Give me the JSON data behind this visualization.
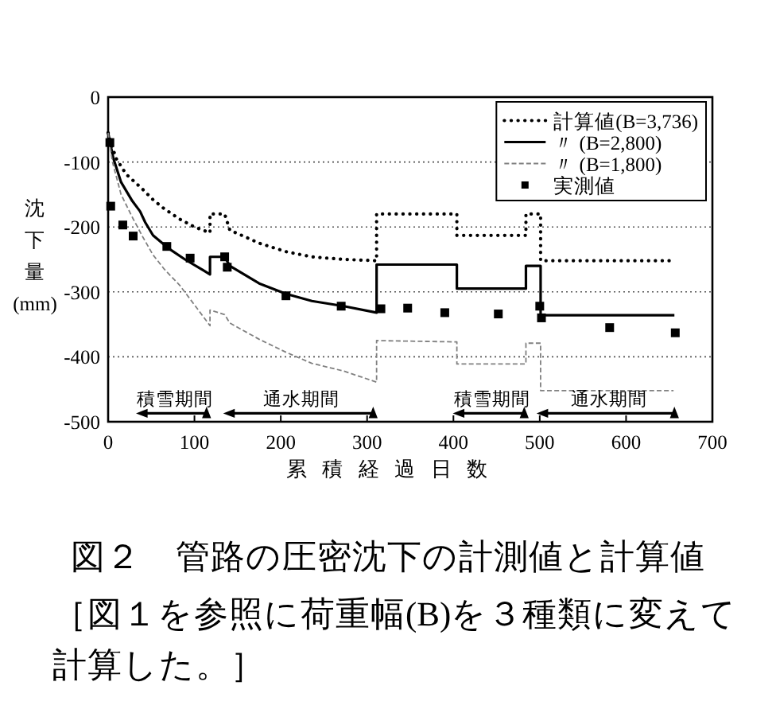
{
  "chart_data": {
    "type": "line",
    "title": "図２　管路の圧密沈下の計測値と計算値",
    "subtitle": "［図１を参照に荷重幅(B)を３種類に変えて計算した。］",
    "xlabel": "累積経過日数",
    "ylabel": "沈下量(mm)",
    "xlim": [
      0,
      700
    ],
    "xticks": [
      0,
      100,
      200,
      300,
      400,
      500,
      600,
      700
    ],
    "ylim": [
      -500,
      0
    ],
    "yticks": [
      -500,
      -400,
      -300,
      -200,
      -100,
      0
    ],
    "grid": "y",
    "legend": "top right",
    "annotations": [
      {
        "text": "積雪期間",
        "x": 77,
        "y": -487
      },
      {
        "text": "通水期間",
        "x": 224,
        "y": -487
      },
      {
        "text": "積雪期間",
        "x": 445,
        "y": -487
      },
      {
        "text": "通水期間",
        "x": 580,
        "y": -487
      }
    ],
    "series": [
      {
        "name": "計算値(B=3,736)",
        "color": "#000000",
        "line_style": "dotted",
        "x": [
          0,
          9,
          21,
          31,
          40,
          52,
          65,
          83,
          100,
          118,
          118,
          135,
          141,
          160,
          175,
          206,
          236,
          273,
          311,
          311,
          400,
          404,
          404,
          484,
          484,
          501,
          501,
          651
        ],
        "values": [
          -55,
          -94,
          -119,
          -131,
          -142,
          -158,
          -172,
          -188,
          -200,
          -209,
          -180,
          -180,
          -205,
          -216,
          -225,
          -238,
          -246,
          -250,
          -252,
          -180,
          -180,
          -180,
          -213,
          -213,
          -180,
          -180,
          -252,
          -252
        ]
      },
      {
        "name": "〃 (B=2,800)",
        "color": "#000000",
        "line_style": "solid",
        "x": [
          0,
          3,
          6,
          15,
          28,
          37,
          43,
          52,
          71,
          89,
          118,
          118,
          135,
          141,
          175,
          206,
          236,
          273,
          311,
          311,
          404,
          404,
          484,
          484,
          501,
          501,
          656
        ],
        "values": [
          -55,
          -75,
          -94,
          -131,
          -160,
          -176,
          -193,
          -213,
          -234,
          -250,
          -273,
          -246,
          -246,
          -260,
          -287,
          -303,
          -314,
          -322,
          -332,
          -258,
          -258,
          -295,
          -295,
          -260,
          -260,
          -336,
          -336
        ]
      },
      {
        "name": "〃 (B=1,800)",
        "color": "#808080",
        "line_style": "dashed",
        "x": [
          0,
          5,
          15,
          28,
          40,
          52,
          65,
          83,
          100,
          118,
          118,
          135,
          141,
          175,
          206,
          236,
          273,
          311,
          311,
          404,
          404,
          484,
          484,
          501,
          501,
          655
        ],
        "values": [
          -55,
          -100,
          -150,
          -185,
          -215,
          -243,
          -265,
          -290,
          -320,
          -352,
          -328,
          -335,
          -348,
          -373,
          -393,
          -410,
          -422,
          -439,
          -375,
          -377,
          -411,
          -411,
          -379,
          -379,
          -452,
          -452
        ]
      },
      {
        "name": "実測値",
        "type": "scatter",
        "marker": "square",
        "color": "#000000",
        "x": [
          2,
          3,
          17,
          29,
          68,
          95,
          135,
          138,
          206,
          270,
          316,
          347,
          390,
          452,
          500,
          502,
          581,
          657
        ],
        "values": [
          -70,
          -168,
          -197,
          -214,
          -230,
          -248,
          -246,
          -262,
          -306,
          -322,
          -326,
          -325,
          -332,
          -334,
          -322,
          -340,
          -355,
          -363
        ]
      },
      {
        "color": "#000000",
        "line_style": "solid",
        "marker": "triangle",
        "x": [
          40,
          114
        ],
        "values": [
          -487,
          -487
        ]
      },
      {
        "color": "#000000",
        "line_style": "solid",
        "marker": "triangle",
        "x": [
          141,
          307
        ],
        "values": [
          -487,
          -487
        ]
      },
      {
        "color": "#000000",
        "line_style": "solid",
        "marker": "triangle",
        "x": [
          407,
          482
        ],
        "values": [
          -487,
          -487
        ]
      },
      {
        "color": "#000000",
        "line_style": "solid",
        "marker": "triangle",
        "x": [
          504,
          656
        ],
        "values": [
          -487,
          -487
        ]
      }
    ]
  }
}
